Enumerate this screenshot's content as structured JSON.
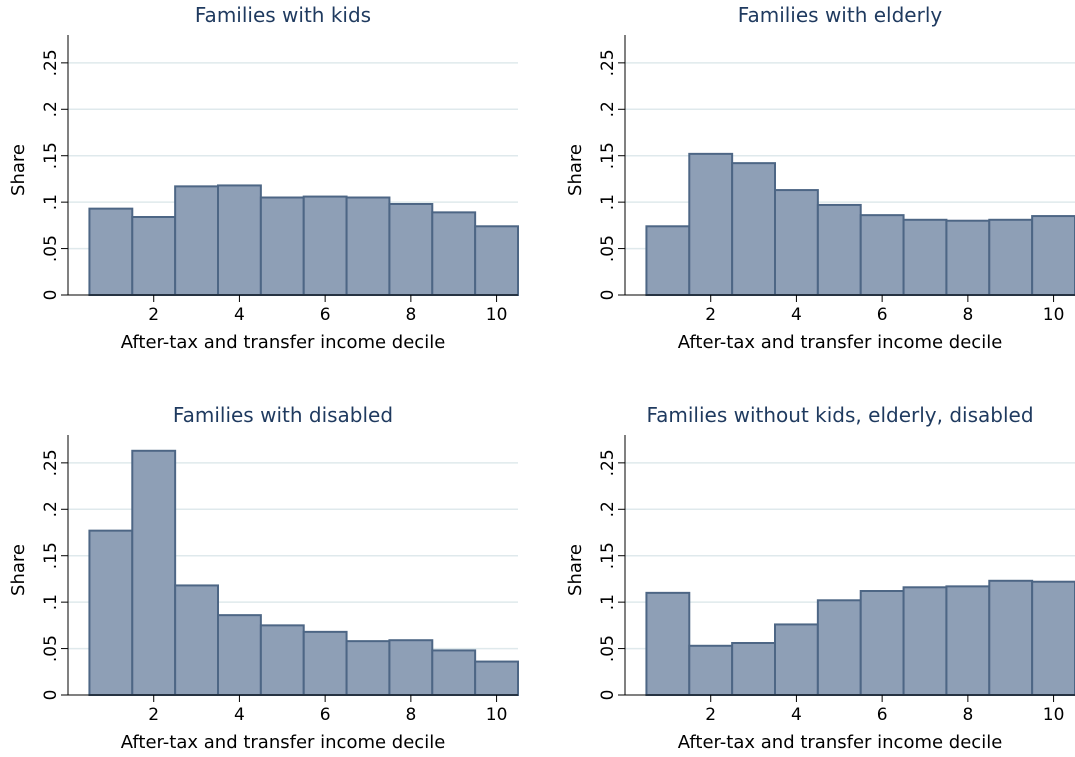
{
  "colors": {
    "bar_fill": "#8e9fb6",
    "bar_stroke": "#4d6685",
    "grid": "#dfe9ec",
    "axis": "#000000",
    "title": "#1f3a5f"
  },
  "chart_data": [
    {
      "type": "bar",
      "title": "Families with kids",
      "xlabel": "After-tax and transfer income decile",
      "ylabel": "Share",
      "categories": [
        1,
        2,
        3,
        4,
        5,
        6,
        7,
        8,
        9,
        10
      ],
      "values": [
        0.093,
        0.084,
        0.117,
        0.118,
        0.105,
        0.106,
        0.105,
        0.098,
        0.089,
        0.074
      ],
      "xticks": [
        2,
        4,
        6,
        8,
        10
      ],
      "yticks": [
        0,
        0.05,
        0.1,
        0.15,
        0.2,
        0.25
      ],
      "ytick_labels": [
        "0",
        ".05",
        ".1",
        ".15",
        ".2",
        ".25"
      ],
      "ylim": [
        0,
        0.28
      ],
      "xlim": [
        0,
        10.5
      ],
      "grid": true
    },
    {
      "type": "bar",
      "title": "Families with elderly",
      "xlabel": "After-tax and transfer income decile",
      "ylabel": "Share",
      "categories": [
        1,
        2,
        3,
        4,
        5,
        6,
        7,
        8,
        9,
        10
      ],
      "values": [
        0.074,
        0.152,
        0.142,
        0.113,
        0.097,
        0.086,
        0.081,
        0.08,
        0.081,
        0.085
      ],
      "xticks": [
        2,
        4,
        6,
        8,
        10
      ],
      "yticks": [
        0,
        0.05,
        0.1,
        0.15,
        0.2,
        0.25
      ],
      "ytick_labels": [
        "0",
        ".05",
        ".1",
        ".15",
        ".2",
        ".25"
      ],
      "ylim": [
        0,
        0.28
      ],
      "xlim": [
        0,
        10.5
      ],
      "grid": true
    },
    {
      "type": "bar",
      "title": "Families with disabled",
      "xlabel": "After-tax and transfer income decile",
      "ylabel": "Share",
      "categories": [
        1,
        2,
        3,
        4,
        5,
        6,
        7,
        8,
        9,
        10
      ],
      "values": [
        0.177,
        0.263,
        0.118,
        0.086,
        0.075,
        0.068,
        0.058,
        0.059,
        0.048,
        0.036
      ],
      "xticks": [
        2,
        4,
        6,
        8,
        10
      ],
      "yticks": [
        0,
        0.05,
        0.1,
        0.15,
        0.2,
        0.25
      ],
      "ytick_labels": [
        "0",
        ".05",
        ".1",
        ".15",
        ".2",
        ".25"
      ],
      "ylim": [
        0,
        0.28
      ],
      "xlim": [
        0,
        10.5
      ],
      "grid": true
    },
    {
      "type": "bar",
      "title": "Families without kids, elderly, disabled",
      "xlabel": "After-tax and transfer income decile",
      "ylabel": "Share",
      "categories": [
        1,
        2,
        3,
        4,
        5,
        6,
        7,
        8,
        9,
        10
      ],
      "values": [
        0.11,
        0.053,
        0.056,
        0.076,
        0.102,
        0.112,
        0.116,
        0.117,
        0.123,
        0.122
      ],
      "xticks": [
        2,
        4,
        6,
        8,
        10
      ],
      "yticks": [
        0,
        0.05,
        0.1,
        0.15,
        0.2,
        0.25
      ],
      "ytick_labels": [
        "0",
        ".05",
        ".1",
        ".15",
        ".2",
        ".25"
      ],
      "ylim": [
        0,
        0.28
      ],
      "xlim": [
        0,
        10.5
      ],
      "grid": true
    }
  ]
}
